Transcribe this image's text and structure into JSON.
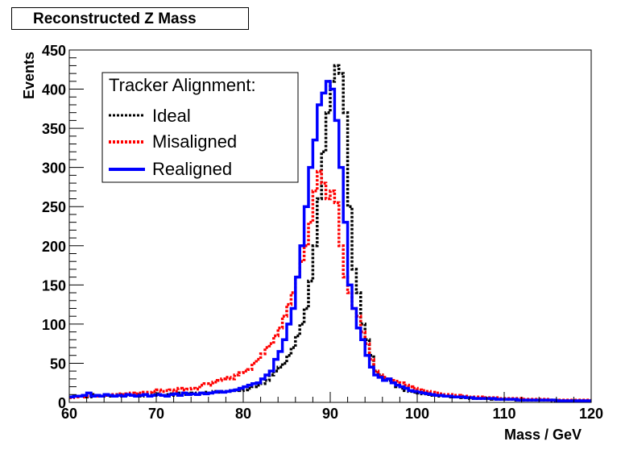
{
  "chart_data": {
    "type": "line",
    "title": "Reconstructed Z Mass",
    "xlabel": "Mass / GeV",
    "ylabel": "Events",
    "xlim": [
      60,
      120
    ],
    "ylim": [
      0,
      450
    ],
    "xticks": [
      60,
      70,
      80,
      90,
      100,
      110,
      120
    ],
    "yticks": [
      0,
      50,
      100,
      150,
      200,
      250,
      300,
      350,
      400,
      450
    ],
    "bin_width": 0.5,
    "legend": {
      "title": "Tracker Alignment:",
      "position": "top-left",
      "entries": [
        "Ideal",
        "Misaligned",
        "Realigned"
      ]
    },
    "series": [
      {
        "name": "Ideal",
        "color": "#000000",
        "style": "dotted",
        "values": [
          7,
          8,
          8,
          9,
          7,
          10,
          9,
          8,
          9,
          8,
          8,
          10,
          8,
          9,
          9,
          10,
          8,
          9,
          9,
          10,
          11,
          9,
          10,
          11,
          9,
          12,
          10,
          11,
          12,
          11,
          12,
          13,
          12,
          14,
          13,
          14,
          14,
          15,
          16,
          15,
          16,
          18,
          20,
          22,
          24,
          28,
          35,
          40,
          45,
          50,
          60,
          70,
          85,
          100,
          120,
          155,
          200,
          260,
          320,
          370,
          410,
          430,
          420,
          370,
          250,
          170,
          140,
          100,
          80,
          60,
          40,
          35,
          30,
          28,
          25,
          20,
          18,
          15,
          14,
          13,
          12,
          11,
          10,
          9,
          9,
          8,
          8,
          7,
          7,
          7,
          6,
          6,
          5,
          5,
          5,
          5,
          5,
          4,
          4,
          4,
          4,
          4,
          3,
          3,
          3,
          3,
          3,
          3,
          3,
          3,
          3,
          2,
          2,
          2,
          2,
          2,
          2,
          2,
          2,
          2
        ]
      },
      {
        "name": "Misaligned",
        "color": "#ff0000",
        "style": "dotted",
        "values": [
          6,
          7,
          8,
          7,
          8,
          9,
          8,
          8,
          9,
          9,
          10,
          11,
          10,
          11,
          12,
          11,
          12,
          13,
          13,
          14,
          16,
          14,
          15,
          16,
          14,
          18,
          16,
          17,
          18,
          17,
          22,
          24,
          22,
          26,
          28,
          30,
          32,
          30,
          35,
          38,
          40,
          42,
          50,
          55,
          62,
          70,
          75,
          85,
          95,
          110,
          125,
          140,
          160,
          180,
          200,
          230,
          270,
          295,
          280,
          260,
          270,
          255,
          200,
          160,
          140,
          120,
          110,
          90,
          75,
          55,
          40,
          35,
          32,
          30,
          28,
          27,
          25,
          22,
          20,
          18,
          16,
          15,
          14,
          13,
          12,
          11,
          10,
          10,
          9,
          9,
          8,
          8,
          7,
          7,
          7,
          6,
          6,
          6,
          6,
          5,
          5,
          5,
          5,
          5,
          4,
          4,
          4,
          4,
          4,
          4,
          3,
          3,
          3,
          3,
          3,
          3,
          3,
          3,
          3,
          3
        ]
      },
      {
        "name": "Realigned",
        "color": "#0000ff",
        "style": "solid",
        "values": [
          7,
          8,
          8,
          9,
          12,
          8,
          9,
          8,
          10,
          9,
          8,
          9,
          8,
          10,
          9,
          8,
          9,
          10,
          8,
          9,
          10,
          9,
          8,
          10,
          11,
          9,
          12,
          10,
          11,
          10,
          12,
          11,
          12,
          13,
          14,
          13,
          14,
          15,
          16,
          18,
          20,
          22,
          24,
          25,
          30,
          35,
          40,
          55,
          65,
          80,
          100,
          120,
          160,
          200,
          250,
          300,
          335,
          380,
          395,
          410,
          400,
          360,
          300,
          230,
          150,
          120,
          95,
          80,
          60,
          45,
          35,
          32,
          28,
          30,
          25,
          22,
          20,
          18,
          15,
          14,
          13,
          12,
          11,
          10,
          9,
          9,
          8,
          8,
          7,
          7,
          7,
          6,
          6,
          5,
          5,
          5,
          5,
          5,
          4,
          4,
          4,
          4,
          4,
          3,
          3,
          3,
          3,
          3,
          3,
          3,
          3,
          3,
          2,
          2,
          2,
          2,
          2,
          2,
          2,
          2
        ]
      }
    ]
  }
}
